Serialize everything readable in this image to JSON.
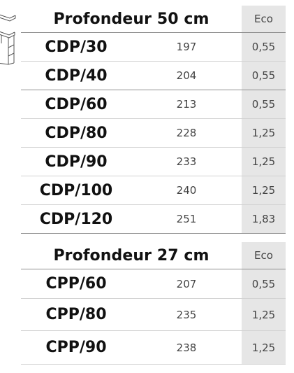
{
  "tables": [
    {
      "title": "Profondeur 50 cm",
      "eco_header": "Eco",
      "rows": [
        {
          "model": "CDP/30",
          "value": "197",
          "eco": "0,55"
        },
        {
          "model": "CDP/40",
          "value": "204",
          "eco": "0,55"
        },
        {
          "model": "CDP/60",
          "value": "213",
          "eco": "0,55"
        },
        {
          "model": "CDP/80",
          "value": "228",
          "eco": "1,25"
        },
        {
          "model": "CDP/90",
          "value": "233",
          "eco": "1,25"
        },
        {
          "model": "CDP/100",
          "value": "240",
          "eco": "1,25"
        },
        {
          "model": "CDP/120",
          "value": "251",
          "eco": "1,83"
        }
      ]
    },
    {
      "title": "Profondeur 27 cm",
      "eco_header": "Eco",
      "rows": [
        {
          "model": "CPP/60",
          "value": "207",
          "eco": "0,55"
        },
        {
          "model": "CPP/80",
          "value": "235",
          "eco": "1,25"
        },
        {
          "model": "CPP/90",
          "value": "238",
          "eco": "1,25"
        }
      ]
    }
  ],
  "colors": {
    "eco_column_bg": "#e6e6e6",
    "rule": "#d2d2d2",
    "heavy_rule": "#8f8f8f"
  },
  "icons": {
    "left_edge": "shelf-unit-icon"
  }
}
